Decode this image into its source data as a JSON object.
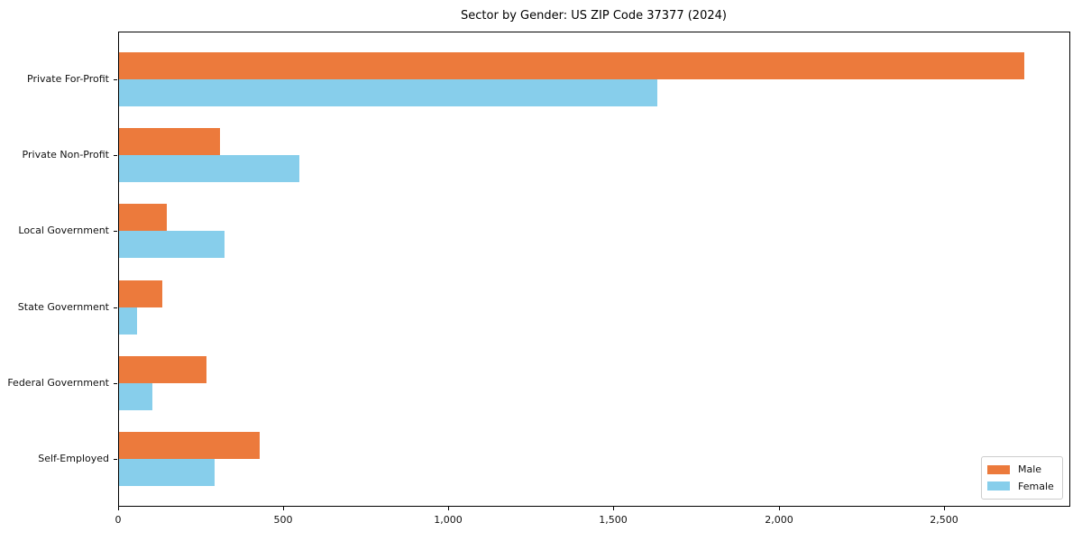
{
  "chart_data": {
    "type": "bar",
    "orientation": "horizontal",
    "title": "Sector by Gender: US ZIP Code 37377 (2024)",
    "categories": [
      "Private For-Profit",
      "Private Non-Profit",
      "Local Government",
      "State Government",
      "Federal Government",
      "Self-Employed"
    ],
    "series": [
      {
        "name": "Male",
        "color": "#EC7A3C",
        "values": [
          2740,
          305,
          145,
          130,
          265,
          425
        ]
      },
      {
        "name": "Female",
        "color": "#87CEEB",
        "values": [
          1630,
          545,
          320,
          55,
          100,
          290
        ]
      }
    ],
    "xlabel": "",
    "ylabel": "",
    "xlim": [
      0,
      2880
    ],
    "xticks": [
      0,
      500,
      1000,
      1500,
      2000,
      2500
    ],
    "xtick_labels": [
      "0",
      "500",
      "1,000",
      "1,500",
      "2,000",
      "2,500"
    ],
    "grid": false,
    "legend": {
      "position": "lower-right",
      "entries": [
        "Male",
        "Female"
      ]
    },
    "colors": {
      "background": "#ffffff",
      "spine": "#000000",
      "text": "#111111",
      "legend_border": "#cccccc"
    }
  }
}
